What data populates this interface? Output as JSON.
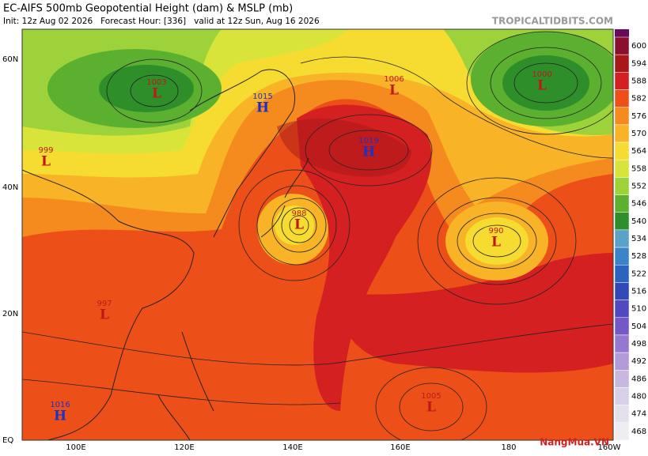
{
  "header": {
    "title": "EC-AIFS 500mb Geopotential Height (dam) & MSLP (mb)",
    "subtitle": "Init: 12z Aug 02 2026   Forecast Hour: [336]   valid at 12z Sun, Aug 16 2026",
    "site": "TROPICALTIDBITS.COM"
  },
  "colorbar": [
    {
      "label": "600",
      "color": "#8a1030"
    },
    {
      "label": "594",
      "color": "#a81818"
    },
    {
      "label": "588",
      "color": "#d42020"
    },
    {
      "label": "582",
      "color": "#ec5018"
    },
    {
      "label": "576",
      "color": "#f58a1e"
    },
    {
      "label": "570",
      "color": "#f8b426"
    },
    {
      "label": "564",
      "color": "#f6dc30"
    },
    {
      "label": "558",
      "color": "#d8e43a"
    },
    {
      "label": "552",
      "color": "#9ed23a"
    },
    {
      "label": "546",
      "color": "#5cb030"
    },
    {
      "label": "540",
      "color": "#2e8e2a"
    },
    {
      "label": "534",
      "color": "#5aa2c8"
    },
    {
      "label": "528",
      "color": "#3c84c8"
    },
    {
      "label": "522",
      "color": "#2a64c0"
    },
    {
      "label": "516",
      "color": "#3048b8"
    },
    {
      "label": "510",
      "color": "#5248c0"
    },
    {
      "label": "504",
      "color": "#7458c8"
    },
    {
      "label": "498",
      "color": "#9678d0"
    },
    {
      "label": "492",
      "color": "#b09ad8"
    },
    {
      "label": "486",
      "color": "#c8b8e0"
    },
    {
      "label": "480",
      "color": "#d8d0e6"
    },
    {
      "label": "474",
      "color": "#e4e0ec"
    },
    {
      "label": "468",
      "color": "#eeeef2"
    }
  ],
  "latitudes": [
    "60N",
    "40N",
    "20N",
    "EQ"
  ],
  "longitudes": [
    "100E",
    "120E",
    "140E",
    "160E",
    "180",
    "160W"
  ],
  "centers": [
    {
      "kind": "L",
      "value": "1003"
    },
    {
      "kind": "H",
      "value": "1015"
    },
    {
      "kind": "L",
      "value": "1006"
    },
    {
      "kind": "L",
      "value": "1000"
    },
    {
      "kind": "H",
      "value": "1019"
    },
    {
      "kind": "L",
      "value": "988"
    },
    {
      "kind": "L",
      "value": "990"
    },
    {
      "kind": "L",
      "value": "999"
    },
    {
      "kind": "L",
      "value": "997"
    },
    {
      "kind": "H",
      "value": "1016"
    },
    {
      "kind": "L",
      "value": "1005"
    }
  ],
  "watermark": "NangMua.VN"
}
